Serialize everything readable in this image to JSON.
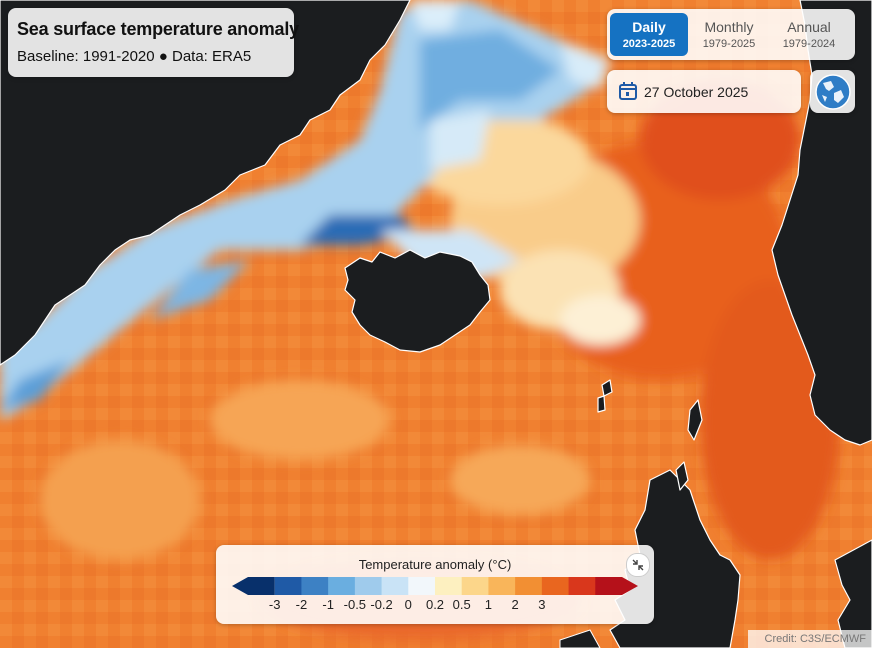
{
  "header": {
    "title": "Sea surface temperature anomaly",
    "subtitle": "Baseline: 1991-2020 ● Data: ERA5"
  },
  "period_tabs": [
    {
      "label": "Daily",
      "range": "2023-2025",
      "active": true
    },
    {
      "label": "Monthly",
      "range": "1979-2025",
      "active": false
    },
    {
      "label": "Annual",
      "range": "1979-2024",
      "active": false
    }
  ],
  "date_picker": {
    "value": "27 October 2025",
    "icon": "calendar-icon"
  },
  "globe_button": {
    "icon": "globe-icon"
  },
  "legend": {
    "title": "Temperature anomaly (°C)",
    "ticks": [
      "-3",
      "-2",
      "-1",
      "-0.5",
      "-0.2",
      "0",
      "0.2",
      "0.5",
      "1",
      "2",
      "3"
    ],
    "colors": [
      "#08306b",
      "#1f5aa6",
      "#3d81c4",
      "#6aaee0",
      "#9fcbec",
      "#c9e3f6",
      "#f2f7fb",
      "#fdf0c0",
      "#fcd68a",
      "#f9b55a",
      "#f28f33",
      "#e9661f",
      "#d9371c",
      "#b5111a"
    ],
    "collapse_icon": "collapse-arrows-icon"
  },
  "credit": "Credit: C3S/ECMWF",
  "colors": {
    "accent": "#1572c2",
    "land": "#1b1d1f",
    "warm_anomaly": "#f07c2a",
    "cold_anomaly": "#6aaee0"
  }
}
